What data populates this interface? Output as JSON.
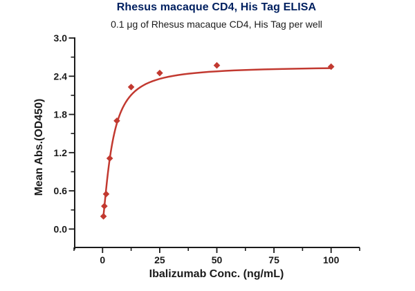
{
  "chart_data": {
    "type": "scatter",
    "title": "Rhesus macaque CD4, His Tag ELISA",
    "subtitle": "0.1 μg of Rhesus macaque CD4, His Tag per well",
    "xlabel": "Ibalizumab Conc. (ng/mL)",
    "ylabel": "Mean Abs.(OD450)",
    "x": [
      0.39,
      0.78,
      1.56,
      3.13,
      6.25,
      12.5,
      25,
      50,
      100
    ],
    "y": [
      0.2,
      0.36,
      0.55,
      1.11,
      1.7,
      2.23,
      2.45,
      2.57,
      2.55
    ],
    "xlim": [
      -12.5,
      112.5
    ],
    "ylim": [
      -0.3,
      3.0
    ],
    "x_major_ticks": [
      0,
      25,
      50,
      75,
      100
    ],
    "x_minor_step": 12.5,
    "y_major_ticks": [
      0.0,
      0.6,
      1.2,
      1.8,
      2.4,
      3.0
    ],
    "y_minor_step": 0.3,
    "fit": {
      "model": "4PL",
      "bottom": 0.12,
      "top": 2.56,
      "ec50": 4.2,
      "hill": 1.35
    },
    "marker": "diamond",
    "grid": false,
    "legend": null,
    "colors": {
      "series": "#C23930",
      "axis": "#1A1A1A",
      "title": "#002060"
    }
  }
}
